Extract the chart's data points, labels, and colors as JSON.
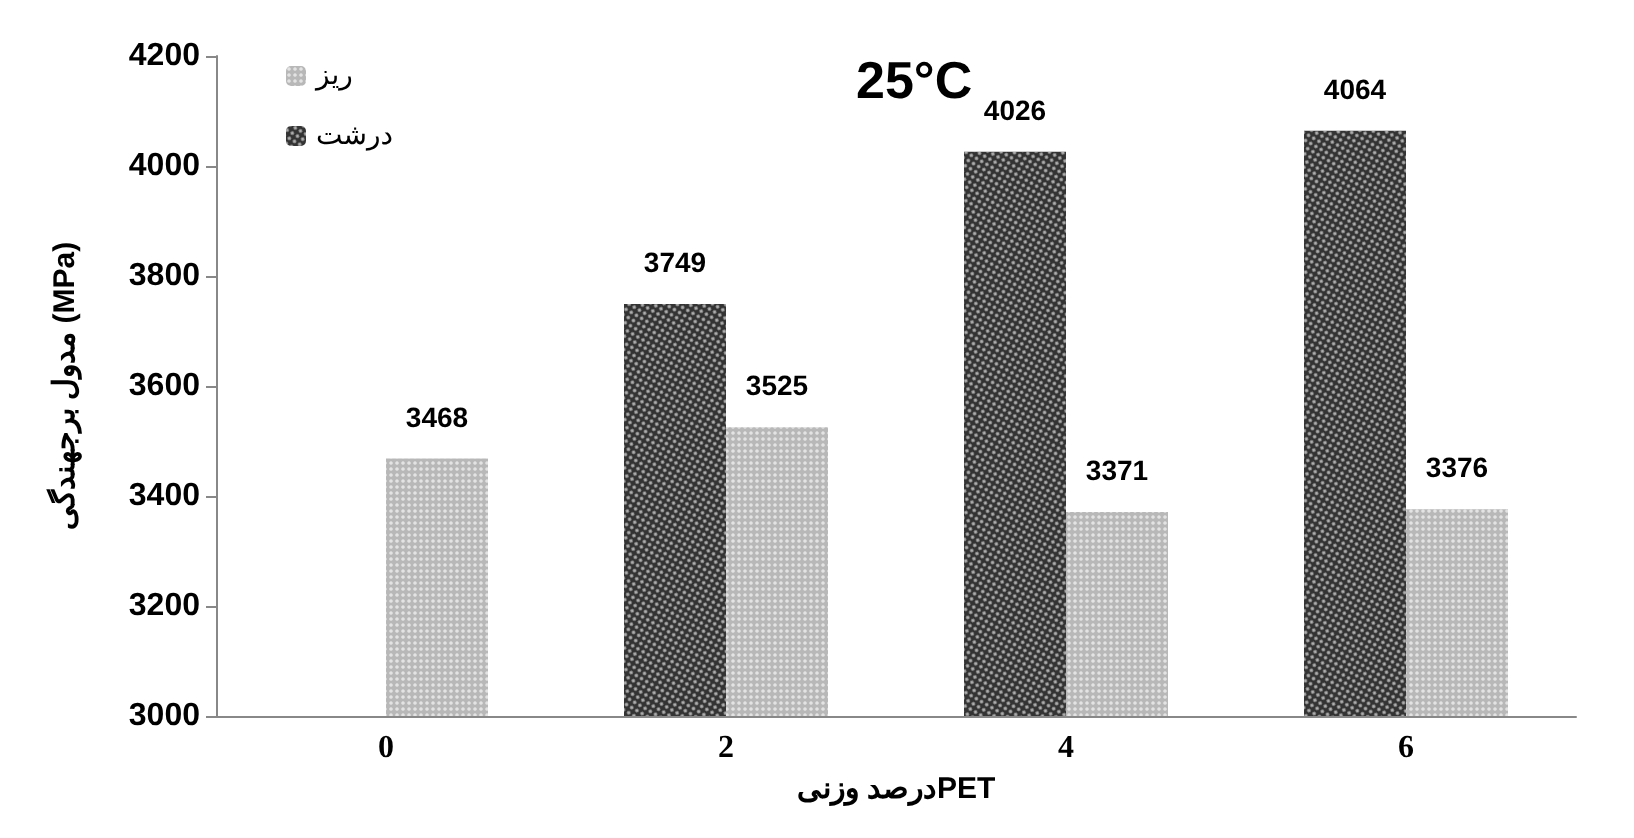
{
  "chart_data": {
    "type": "bar",
    "title": "25°C",
    "xlabel": "درصد وزنیPET",
    "ylabel": "مدول برجهندگی (MPa)",
    "categories": [
      "0",
      "2",
      "4",
      "6"
    ],
    "series": [
      {
        "name": "درشت",
        "color": "#333333",
        "values": [
          null,
          3749,
          4026,
          4064
        ]
      },
      {
        "name": "ریز",
        "color": "#b8b8b8",
        "values": [
          3468,
          3525,
          3371,
          3376
        ]
      }
    ],
    "ylim": [
      3000,
      4200
    ],
    "yticks": [
      3000,
      3200,
      3400,
      3600,
      3800,
      4000,
      4200
    ],
    "grid": false,
    "legend": "top left",
    "data_labels": true
  }
}
